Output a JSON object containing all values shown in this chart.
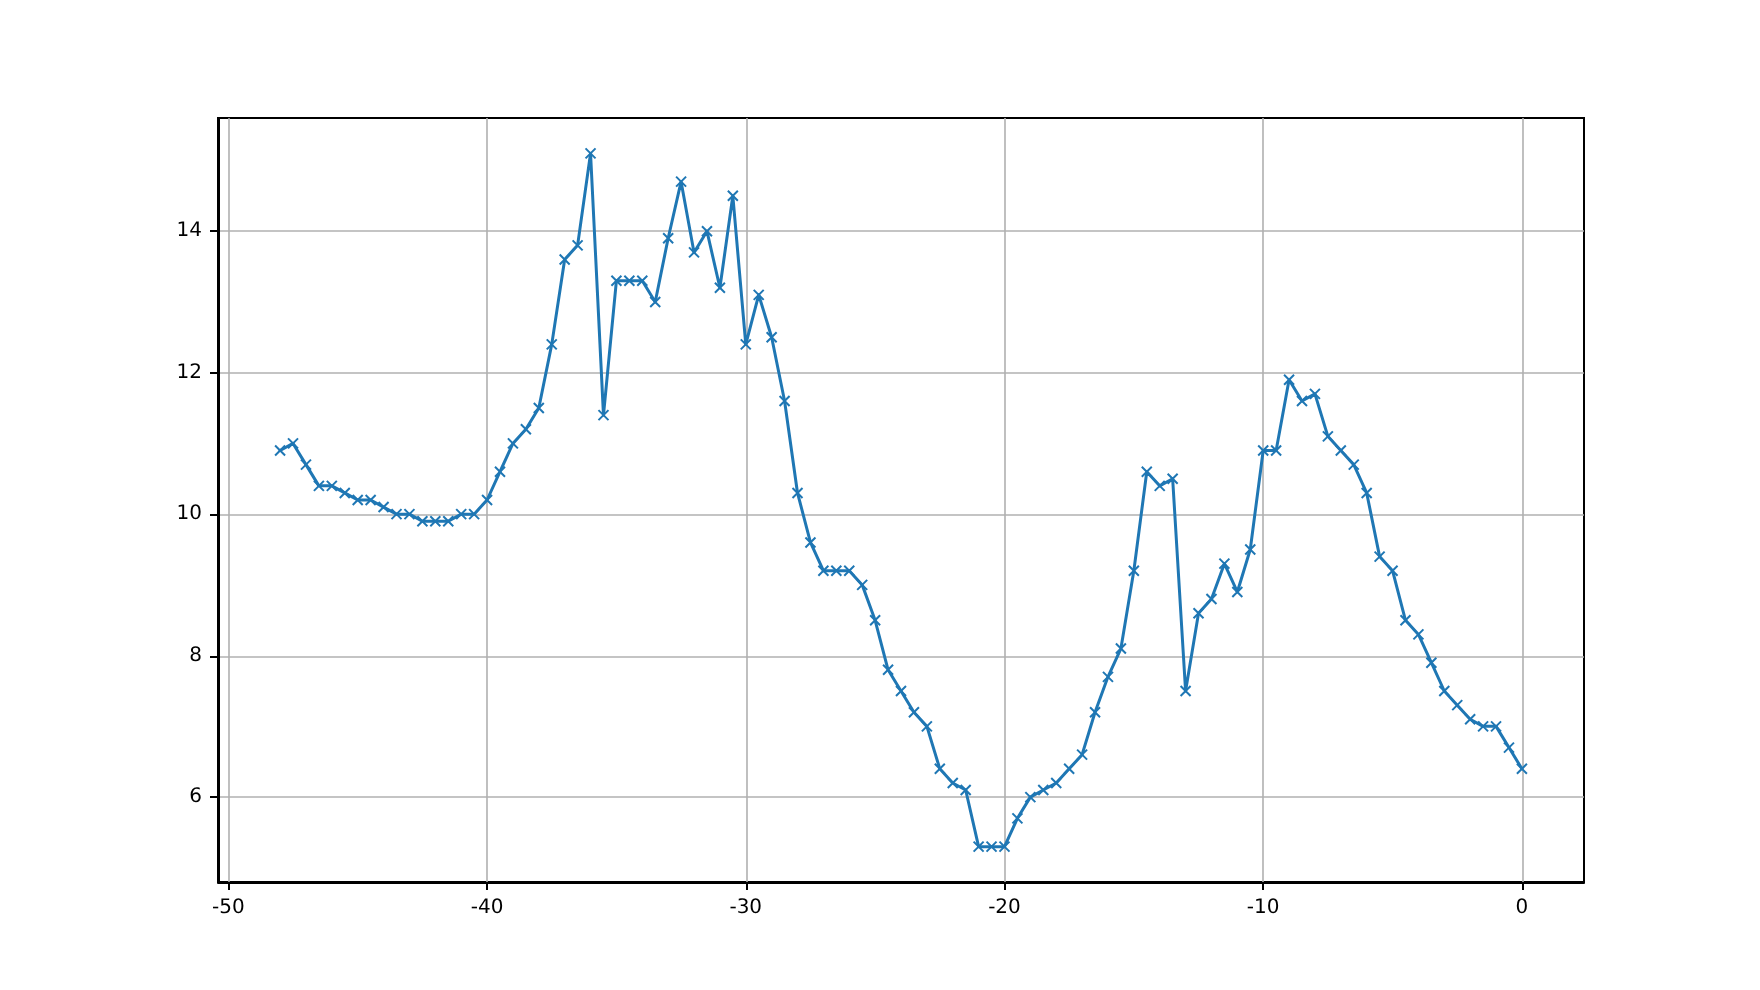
{
  "chart_data": {
    "type": "line",
    "marker": "cross",
    "line_style": "solid",
    "grid": true,
    "x": [
      -48,
      -47.5,
      -47,
      -46.5,
      -46,
      -45.5,
      -45,
      -44.5,
      -44,
      -43.5,
      -43,
      -42.5,
      -42,
      -41.5,
      -41,
      -40.5,
      -40,
      -39.5,
      -39,
      -38.5,
      -38,
      -37.5,
      -37,
      -36.5,
      -36,
      -35.5,
      -35,
      -34.5,
      -34,
      -33.5,
      -33,
      -32.5,
      -32,
      -31.5,
      -31,
      -30.5,
      -30,
      -29.5,
      -29,
      -28.5,
      -28,
      -27.5,
      -27,
      -26.5,
      -26,
      -25.5,
      -25,
      -24.5,
      -24,
      -23.5,
      -23,
      -22.5,
      -22,
      -21.5,
      -21,
      -20.5,
      -20,
      -19.5,
      -19,
      -18.5,
      -18,
      -17.5,
      -17,
      -16.5,
      -16,
      -15.5,
      -15,
      -14.5,
      -14,
      -13.5,
      -13,
      -12.5,
      -12,
      -11.5,
      -11,
      -10.5,
      -10,
      -9.5,
      -9,
      -8.5,
      -8,
      -7.5,
      -7,
      -6.5,
      -6,
      -5.5,
      -5,
      -4.5,
      -4,
      -3.5,
      -3,
      -2.5,
      -2,
      -1.5,
      -1,
      -0.5,
      0
    ],
    "series": [
      {
        "color": "#1f77b4",
        "values": [
          10.9,
          11.0,
          10.7,
          10.4,
          10.4,
          10.3,
          10.2,
          10.2,
          10.1,
          10.0,
          10.0,
          9.9,
          9.9,
          9.9,
          10.0,
          10.0,
          10.2,
          10.6,
          11.0,
          11.2,
          11.5,
          12.4,
          13.6,
          13.8,
          15.1,
          11.4,
          13.3,
          13.3,
          13.3,
          13.0,
          13.9,
          14.7,
          13.7,
          14.0,
          13.2,
          14.5,
          12.4,
          13.1,
          12.5,
          11.6,
          10.3,
          9.6,
          9.2,
          9.2,
          9.2,
          9.0,
          8.5,
          7.8,
          7.5,
          7.2,
          7.0,
          6.4,
          6.2,
          6.1,
          5.3,
          5.3,
          5.3,
          5.7,
          6.0,
          6.1,
          6.2,
          6.4,
          6.6,
          7.2,
          7.7,
          8.1,
          9.2,
          10.6,
          10.4,
          10.5,
          7.5,
          8.6,
          8.8,
          9.3,
          8.9,
          9.5,
          10.9,
          10.9,
          11.9,
          11.6,
          11.7,
          11.1,
          10.9,
          10.7,
          10.3,
          9.4,
          9.2,
          8.5,
          8.3,
          7.9,
          7.5,
          7.3,
          7.1,
          7.0,
          7.0,
          6.7,
          6.4
        ]
      }
    ],
    "xlim": [
      -50.4,
      2.4
    ],
    "ylim": [
      4.8,
      15.6
    ],
    "xticks": [
      -50,
      -40,
      -30,
      -20,
      -10,
      0
    ],
    "yticks": [
      6,
      8,
      10,
      12,
      14
    ]
  }
}
